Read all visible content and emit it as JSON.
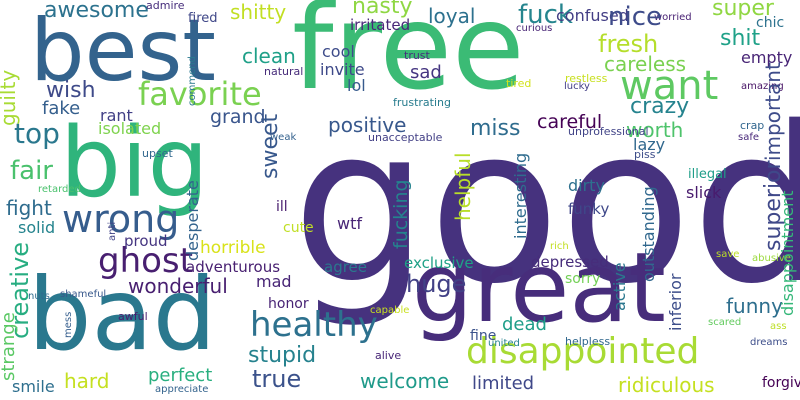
{
  "words": [
    {
      "text": "good",
      "color": "#46327e",
      "vertical": false
    },
    {
      "text": "free",
      "color": "#3bbb75",
      "vertical": false
    },
    {
      "text": "best",
      "color": "#33638d",
      "vertical": false
    },
    {
      "text": "big",
      "color": "#2fb47c",
      "vertical": false
    },
    {
      "text": "bad",
      "color": "#2a788e",
      "vertical": false
    },
    {
      "text": "great",
      "color": "#472d7b",
      "vertical": false
    },
    {
      "text": "disappointed",
      "color": "#a8db34",
      "vertical": false
    },
    {
      "text": "wrong",
      "color": "#365d8d",
      "vertical": false
    },
    {
      "text": "ghost",
      "color": "#481f70",
      "vertical": false
    },
    {
      "text": "healthy",
      "color": "#2d718e",
      "vertical": false
    },
    {
      "text": "want",
      "color": "#5ec962",
      "vertical": false
    },
    {
      "text": "favorite",
      "color": "#7ad151",
      "vertical": false
    },
    {
      "text": "awesome",
      "color": "#2c728e",
      "vertical": false
    },
    {
      "text": "top",
      "color": "#2a788e",
      "vertical": false
    },
    {
      "text": "fair",
      "color": "#4ac16d",
      "vertical": false
    },
    {
      "text": "wish",
      "color": "#3e4a89",
      "vertical": false
    },
    {
      "text": "fake",
      "color": "#355f8d",
      "vertical": false
    },
    {
      "text": "fight",
      "color": "#2f6c8e",
      "vertical": false
    },
    {
      "text": "solid",
      "color": "#25848e",
      "vertical": false
    },
    {
      "text": "nasty",
      "color": "#8fd744",
      "vertical": false
    },
    {
      "text": "fuck",
      "color": "#25858e",
      "vertical": false
    },
    {
      "text": "loyal",
      "color": "#2d718e",
      "vertical": false
    },
    {
      "text": "confused",
      "color": "#433e85",
      "vertical": false
    },
    {
      "text": "worried",
      "color": "#482173",
      "vertical": false
    },
    {
      "text": "admire",
      "color": "#472e7c",
      "vertical": false
    },
    {
      "text": "fired",
      "color": "#3f4788",
      "vertical": false
    },
    {
      "text": "shitty",
      "color": "#c2df23",
      "vertical": false
    },
    {
      "text": "irritated",
      "color": "#482878",
      "vertical": false
    },
    {
      "text": "nice",
      "color": "#3e4c8a",
      "vertical": false
    },
    {
      "text": "super",
      "color": "#90d743",
      "vertical": false
    },
    {
      "text": "fresh",
      "color": "#b5de2b",
      "vertical": false
    },
    {
      "text": "shit",
      "color": "#1fa188",
      "vertical": false
    },
    {
      "text": "empty",
      "color": "#482576",
      "vertical": false
    },
    {
      "text": "careless",
      "color": "#7ad151",
      "vertical": false
    },
    {
      "text": "chic",
      "color": "#2c728e",
      "vertical": false
    },
    {
      "text": "curious",
      "color": "#482475",
      "vertical": false
    },
    {
      "text": "cool",
      "color": "#3e4c8a",
      "vertical": false
    },
    {
      "text": "invite",
      "color": "#3e4989",
      "vertical": false
    },
    {
      "text": "lol",
      "color": "#375b8d",
      "vertical": false
    },
    {
      "text": "trust",
      "color": "#46317e",
      "vertical": false
    },
    {
      "text": "sad",
      "color": "#453581",
      "vertical": false
    },
    {
      "text": "clean",
      "color": "#1fa088",
      "vertical": false
    },
    {
      "text": "natural",
      "color": "#472c7a",
      "vertical": false
    },
    {
      "text": "tired",
      "color": "#d2e21b",
      "vertical": false
    },
    {
      "text": "restless",
      "color": "#c8e020",
      "vertical": false
    },
    {
      "text": "lucky",
      "color": "#433e85",
      "vertical": false
    },
    {
      "text": "amazing",
      "color": "#471365",
      "vertical": false
    },
    {
      "text": "frustrating",
      "color": "#287c8e",
      "vertical": false
    },
    {
      "text": "crazy",
      "color": "#25838e",
      "vertical": false
    },
    {
      "text": "grand",
      "color": "#39558c",
      "vertical": false
    },
    {
      "text": "positive",
      "color": "#38588c",
      "vertical": false
    },
    {
      "text": "miss",
      "color": "#2f6c8e",
      "vertical": false
    },
    {
      "text": "careful",
      "color": "#440154",
      "vertical": false
    },
    {
      "text": "worth",
      "color": "#4ec36b",
      "vertical": false
    },
    {
      "text": "rant",
      "color": "#424086",
      "vertical": false
    },
    {
      "text": "isolated",
      "color": "#7fd34e",
      "vertical": false
    },
    {
      "text": "unacceptable",
      "color": "#423f85",
      "vertical": false
    },
    {
      "text": "unprofessional",
      "color": "#414487",
      "vertical": false
    },
    {
      "text": "crap",
      "color": "#31668e",
      "vertical": false
    },
    {
      "text": "safe",
      "color": "#482979",
      "vertical": false
    },
    {
      "text": "lazy",
      "color": "#31688e",
      "vertical": false
    },
    {
      "text": "piss",
      "color": "#3d4d8a",
      "vertical": false
    },
    {
      "text": "illegal",
      "color": "#1f9e89",
      "vertical": false
    },
    {
      "text": "dirty",
      "color": "#2d708e",
      "vertical": false
    },
    {
      "text": "funky",
      "color": "#3f4889",
      "vertical": false
    },
    {
      "text": "slick",
      "color": "#481b6d",
      "vertical": false
    },
    {
      "text": "wtf",
      "color": "#482576",
      "vertical": false
    },
    {
      "text": "ill",
      "color": "#481c6e",
      "vertical": false
    },
    {
      "text": "cute",
      "color": "#c0df25",
      "vertical": false
    },
    {
      "text": "proud",
      "color": "#453581",
      "vertical": false
    },
    {
      "text": "horrible",
      "color": "#d8e219",
      "vertical": false
    },
    {
      "text": "adventurous",
      "color": "#482071",
      "vertical": false
    },
    {
      "text": "wonderful",
      "color": "#481f70",
      "vertical": false
    },
    {
      "text": "mad",
      "color": "#482576",
      "vertical": false
    },
    {
      "text": "honor",
      "color": "#482475",
      "vertical": false
    },
    {
      "text": "upset",
      "color": "#31688e",
      "vertical": false
    },
    {
      "text": "weak",
      "color": "#34618d",
      "vertical": false
    },
    {
      "text": "retarded",
      "color": "#4ac16d",
      "vertical": false
    },
    {
      "text": "nuts",
      "color": "#2f6b8e",
      "vertical": false
    },
    {
      "text": "shameful",
      "color": "#38588c",
      "vertical": false
    },
    {
      "text": "awful",
      "color": "#481d6f",
      "vertical": false
    },
    {
      "text": "appreciate",
      "color": "#33638d",
      "vertical": false
    },
    {
      "text": "smile",
      "color": "#2e6f8e",
      "vertical": false
    },
    {
      "text": "hard",
      "color": "#c5e021",
      "vertical": false
    },
    {
      "text": "perfect",
      "color": "#29af7f",
      "vertical": false
    },
    {
      "text": "true",
      "color": "#3b528b",
      "vertical": false
    },
    {
      "text": "stupid",
      "color": "#26828e",
      "vertical": false
    },
    {
      "text": "welcome",
      "color": "#1f9a8a",
      "vertical": false
    },
    {
      "text": "limited",
      "color": "#3f4889",
      "vertical": false
    },
    {
      "text": "ridiculous",
      "color": "#c5e021",
      "vertical": false
    },
    {
      "text": "forgive",
      "color": "#440154",
      "vertical": false
    },
    {
      "text": "agree",
      "color": "#2a788e",
      "vertical": false
    },
    {
      "text": "exclusive",
      "color": "#1fa187",
      "vertical": false
    },
    {
      "text": "depressed",
      "color": "#472d7b",
      "vertical": false
    },
    {
      "text": "huge",
      "color": "#424186",
      "vertical": false
    },
    {
      "text": "sorry",
      "color": "#73d056",
      "vertical": false
    },
    {
      "text": "dead",
      "color": "#1f9e89",
      "vertical": false
    },
    {
      "text": "funny",
      "color": "#2e6f8e",
      "vertical": false
    },
    {
      "text": "fine",
      "color": "#3b528b",
      "vertical": false
    },
    {
      "text": "united",
      "color": "#26828e",
      "vertical": false
    },
    {
      "text": "helpless",
      "color": "#31688e",
      "vertical": false
    },
    {
      "text": "dreams",
      "color": "#3d4e8a",
      "vertical": false
    },
    {
      "text": "alive",
      "color": "#482677",
      "vertical": false
    },
    {
      "text": "capable",
      "color": "#c8e020",
      "vertical": false
    },
    {
      "text": "ass",
      "color": "#bddf26",
      "vertical": false
    },
    {
      "text": "scared",
      "color": "#63cb5f",
      "vertical": false
    },
    {
      "text": "save",
      "color": "#bddf26",
      "vertical": false
    },
    {
      "text": "abusive",
      "color": "#9bd93c",
      "vertical": false
    },
    {
      "text": "rich",
      "color": "#c2df23",
      "vertical": false
    },
    {
      "text": "guilty",
      "color": "#a8db34",
      "vertical": true
    },
    {
      "text": "creative",
      "color": "#27ad81",
      "vertical": true
    },
    {
      "text": "strange",
      "color": "#5ac864",
      "vertical": true
    },
    {
      "text": "sweet",
      "color": "#38588c",
      "vertical": true
    },
    {
      "text": "desperate",
      "color": "#33638d",
      "vertical": true
    },
    {
      "text": "fucking",
      "color": "#25838e",
      "vertical": true
    },
    {
      "text": "helpful",
      "color": "#b8de29",
      "vertical": true
    },
    {
      "text": "interesting",
      "color": "#2f6c8e",
      "vertical": true
    },
    {
      "text": "outstanding",
      "color": "#31688e",
      "vertical": true
    },
    {
      "text": "active",
      "color": "#2a778e",
      "vertical": true
    },
    {
      "text": "inferior",
      "color": "#3d4e8a",
      "vertical": true
    },
    {
      "text": "superior",
      "color": "#3f4889",
      "vertical": true
    },
    {
      "text": "important",
      "color": "#3e4c8a",
      "vertical": true
    },
    {
      "text": "disappointment",
      "color": "#35b779",
      "vertical": true
    },
    {
      "text": "commend",
      "color": "#2a788e",
      "vertical": true
    },
    {
      "text": "anti",
      "color": "#414487",
      "vertical": true
    },
    {
      "text": "mess",
      "color": "#355e8d",
      "vertical": true
    }
  ]
}
